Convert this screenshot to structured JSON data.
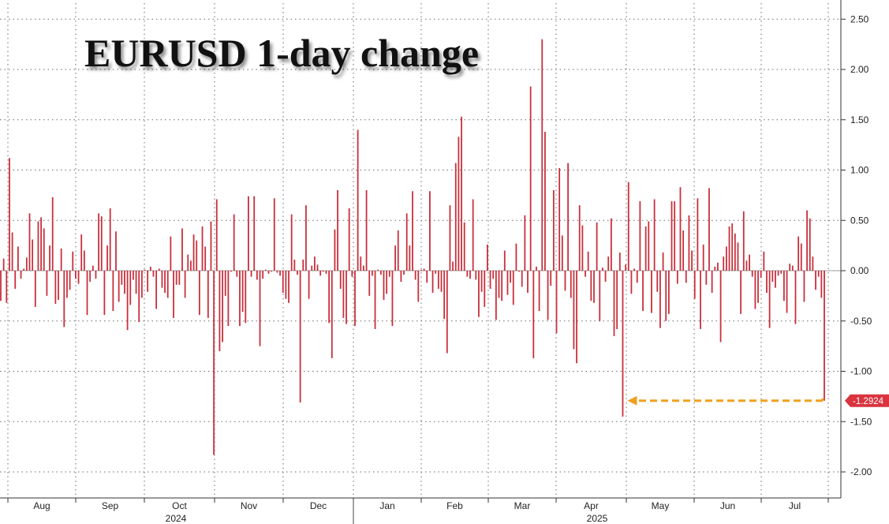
{
  "chart_data": {
    "type": "bar",
    "title": "EURUSD 1-day change",
    "ylim": [
      -2.2,
      2.6
    ],
    "yticks": [
      "2.50",
      "2.00",
      "1.50",
      "1.00",
      "0.50",
      "0.00",
      "-0.50",
      "-1.00",
      "-1.50",
      "-2.00"
    ],
    "ytick_values": [
      2.5,
      2.0,
      1.5,
      1.0,
      0.5,
      0.0,
      -0.5,
      -1.0,
      -1.5,
      -2.0
    ],
    "month_labels": [
      "Aug",
      "Sep",
      "Oct",
      "Nov",
      "Dec",
      "Jan",
      "Feb",
      "Mar",
      "Apr",
      "May",
      "Jun",
      "Jul"
    ],
    "year_labels": [
      "2024",
      "2025"
    ],
    "last_value_label": "-1.2924",
    "last_value": -1.2924,
    "bar_color": "#c8303c",
    "annotation_color": "#f0a020",
    "annotation": "dashed arrow from last value back to May low",
    "grid": true,
    "values": [
      -0.3,
      0.12,
      -0.32,
      1.12,
      0.38,
      -0.18,
      0.24,
      -0.08,
      0.02,
      0.13,
      0.57,
      0.31,
      -0.36,
      0.49,
      0.53,
      0.42,
      -0.25,
      0.25,
      0.73,
      -0.33,
      -0.29,
      0.22,
      -0.56,
      -0.27,
      -0.19,
      0.19,
      -0.08,
      -0.13,
      0.36,
      0.2,
      -0.44,
      -0.11,
      0.05,
      -0.08,
      0.57,
      0.54,
      -0.44,
      0.25,
      0.62,
      -0.4,
      0.39,
      -0.31,
      -0.14,
      -0.23,
      -0.59,
      -0.34,
      -0.09,
      -0.23,
      -0.51,
      -0.27,
      0.01,
      -0.21,
      0.04,
      -0.06,
      -0.38,
      0.02,
      -0.17,
      -0.22,
      -0.27,
      0.34,
      -0.47,
      -0.14,
      -0.14,
      0.42,
      -0.27,
      0.16,
      0.1,
      0.36,
      0.3,
      -0.44,
      0.44,
      0.24,
      -0.47,
      0.49,
      -1.83,
      0.71,
      -0.8,
      -0.71,
      -0.25,
      -0.55,
      -0.01,
      0.56,
      -0.06,
      -0.55,
      -0.41,
      -0.52,
      0.74,
      -0.06,
      0.74,
      -0.09,
      -0.75,
      -0.08,
      0.01,
      -0.03,
      -0.01,
      0.72,
      -0.02,
      -0.05,
      -0.22,
      -0.28,
      -0.32,
      0.56,
      0.11,
      -0.04,
      -1.31,
      0.11,
      0.65,
      -0.28,
      0.05,
      0.14,
      0.06,
      -0.05,
      -0.01,
      -0.03,
      -0.52,
      -0.87,
      0.41,
      0.8,
      -0.18,
      -0.47,
      -0.53,
      0.62,
      -0.06,
      -0.55,
      1.4,
      0.14,
      0.05,
      0.8,
      -0.25,
      -0.05,
      -0.58,
      0.01,
      -0.04,
      -0.29,
      -0.23,
      -0.06,
      -0.55,
      0.25,
      0.4,
      -0.11,
      -0.04,
      0.57,
      0.25,
      0.79,
      -0.09,
      -0.31,
      0.01,
      0.02,
      -0.12,
      0.79,
      -0.22,
      -0.03,
      -0.18,
      -0.21,
      -0.48,
      -0.82,
      0.65,
      0.09,
      1.07,
      1.33,
      1.53,
      0.48,
      -0.06,
      -0.08,
      0.71,
      -0.09,
      -0.46,
      -0.21,
      -0.36,
      0.26,
      -0.18,
      -0.08,
      -0.49,
      -0.27,
      -0.3,
      0.2,
      -0.24,
      -0.12,
      -0.34,
      0.27,
      -0.01,
      -0.16,
      0.55,
      -0.22,
      1.83,
      -0.87,
      0.04,
      -0.4,
      2.3,
      1.38,
      -0.49,
      -0.15,
      0.8,
      -0.62,
      1.02,
      0.35,
      -0.2,
      1.07,
      -0.27,
      -0.78,
      -0.92,
      0.65,
      0.45,
      -0.06,
      0.19,
      -0.3,
      -0.32,
      0.48,
      -0.5,
      0.03,
      -0.11,
      0.14,
      0.52,
      -0.65,
      -0.58,
      0.18,
      -1.45,
      0.06,
      0.88,
      -0.23,
      0.02,
      -0.12,
      0.69,
      -0.4,
      0.44,
      0.49,
      -0.42,
      0.71,
      -0.21,
      -0.57,
      0.18,
      -0.5,
      -0.43,
      0.69,
      0.69,
      -0.13,
      0.83,
      0.4,
      -0.12,
      0.55,
      0.2,
      -0.28,
      0.72,
      -0.58,
      0.26,
      -0.14,
      0.82,
      -0.22,
      0.04,
      0.08,
      -0.71,
      0.14,
      0.24,
      0.44,
      0.47,
      0.37,
      0.28,
      -0.43,
      0.59,
      0.1,
      0.16,
      -0.06,
      -0.38,
      -0.32,
      -0.07,
      0.19,
      -0.22,
      -0.57,
      -0.11,
      -0.17,
      -0.05,
      -0.03,
      -0.3,
      -0.42,
      0.07,
      0.05,
      -0.53,
      0.34,
      0.27,
      -0.31,
      0.6,
      0.52,
      0.14,
      -0.19,
      -0.06,
      -0.27,
      -1.2924
    ]
  }
}
